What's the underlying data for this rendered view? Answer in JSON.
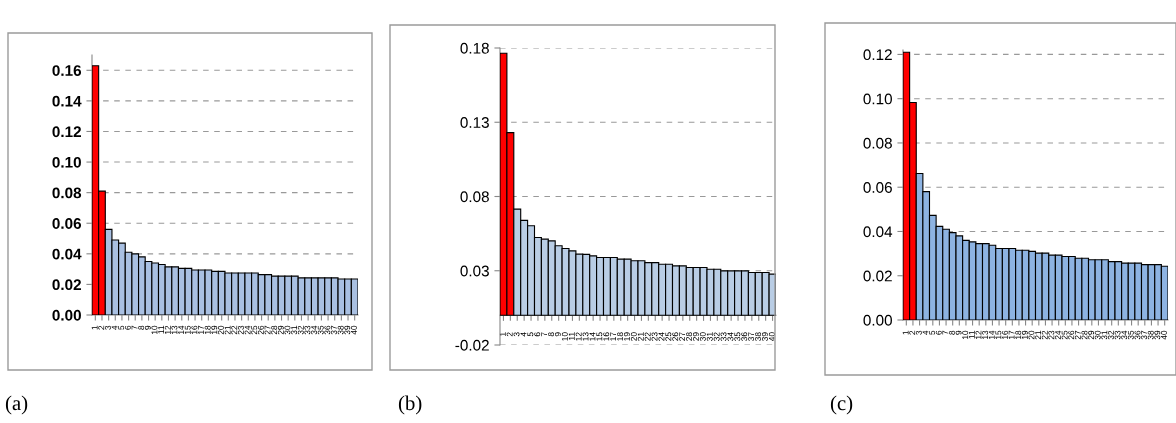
{
  "chart_data": [
    {
      "type": "bar",
      "categories": [
        "1",
        "2",
        "3",
        "4",
        "5",
        "6",
        "7",
        "8",
        "9",
        "10",
        "11",
        "12",
        "13",
        "14",
        "15",
        "16",
        "17",
        "18",
        "19",
        "20",
        "21",
        "22",
        "23",
        "24",
        "25",
        "26",
        "27",
        "28",
        "29",
        "30",
        "31",
        "32",
        "33",
        "34",
        "35",
        "36",
        "37",
        "38",
        "39",
        "40"
      ],
      "values": [
        0.163,
        0.081,
        0.056,
        0.049,
        0.047,
        0.041,
        0.04,
        0.038,
        0.035,
        0.034,
        0.033,
        0.0315,
        0.0315,
        0.0305,
        0.0305,
        0.0294,
        0.0294,
        0.0294,
        0.0285,
        0.0285,
        0.0275,
        0.0275,
        0.0275,
        0.0275,
        0.0275,
        0.0264,
        0.0264,
        0.0254,
        0.0254,
        0.0254,
        0.0254,
        0.0243,
        0.0243,
        0.0243,
        0.0243,
        0.0243,
        0.0243,
        0.0235,
        0.0235,
        0.0235
      ],
      "colors": [
        "#ff0000",
        "#ff0000",
        "#a9c0e2",
        "#a9c0e2",
        "#a9c0e2",
        "#a9c0e2",
        "#a9c0e2",
        "#a9c0e2",
        "#a9c0e2",
        "#a9c0e2",
        "#a9c0e2",
        "#a9c0e2",
        "#a9c0e2",
        "#a9c0e2",
        "#a9c0e2",
        "#a9c0e2",
        "#a9c0e2",
        "#a9c0e2",
        "#a9c0e2",
        "#a9c0e2",
        "#a9c0e2",
        "#a9c0e2",
        "#a9c0e2",
        "#a9c0e2",
        "#a9c0e2",
        "#a9c0e2",
        "#a9c0e2",
        "#a9c0e2",
        "#a9c0e2",
        "#a9c0e2",
        "#a9c0e2",
        "#a9c0e2",
        "#a9c0e2",
        "#a9c0e2",
        "#a9c0e2",
        "#a9c0e2",
        "#a9c0e2",
        "#a9c0e2",
        "#a9c0e2",
        "#a9c0e2"
      ],
      "ylim": [
        0,
        0.17
      ],
      "yticks": [
        {
          "value": 0,
          "label": "0.00"
        },
        {
          "value": 0.02,
          "label": "0.02"
        },
        {
          "value": 0.04,
          "label": "0.04"
        },
        {
          "value": 0.06,
          "label": "0.06"
        },
        {
          "value": 0.08,
          "label": "0.08"
        },
        {
          "value": 0.1,
          "label": "0.10"
        },
        {
          "value": 0.12,
          "label": "0.12"
        },
        {
          "value": 0.14,
          "label": "0.14"
        },
        {
          "value": 0.16,
          "label": "0.16"
        }
      ],
      "grid": "y",
      "annotations": [
        "(a)"
      ]
    },
    {
      "type": "bar",
      "categories": [
        "1",
        "2",
        "3",
        "4",
        "5",
        "6",
        "7",
        "8",
        "9",
        "10",
        "11",
        "12",
        "13",
        "14",
        "15",
        "16",
        "17",
        "18",
        "19",
        "20",
        "21",
        "22",
        "23",
        "24",
        "25",
        "26",
        "27",
        "28",
        "29",
        "30",
        "31",
        "32",
        "33",
        "34",
        "35",
        "36",
        "37",
        "38",
        "39",
        "40"
      ],
      "values": [
        0.1765,
        0.123,
        0.0715,
        0.0639,
        0.0603,
        0.0524,
        0.0513,
        0.0501,
        0.0468,
        0.045,
        0.0434,
        0.0412,
        0.041,
        0.04,
        0.0389,
        0.0389,
        0.0389,
        0.0378,
        0.0378,
        0.0367,
        0.0367,
        0.0355,
        0.0355,
        0.0344,
        0.0344,
        0.0333,
        0.0333,
        0.0322,
        0.0322,
        0.0322,
        0.031,
        0.031,
        0.0299,
        0.0299,
        0.0299,
        0.0299,
        0.0288,
        0.0288,
        0.0288,
        0.0277
      ],
      "colors": [
        "#ff0000",
        "#ff0000",
        "#b9cde5",
        "#b9cde5",
        "#b9cde5",
        "#b9cde5",
        "#b9cde5",
        "#b9cde5",
        "#b9cde5",
        "#b9cde5",
        "#b9cde5",
        "#b9cde5",
        "#b9cde5",
        "#b9cde5",
        "#b9cde5",
        "#b9cde5",
        "#b9cde5",
        "#b9cde5",
        "#b9cde5",
        "#b9cde5",
        "#b9cde5",
        "#b9cde5",
        "#b9cde5",
        "#b9cde5",
        "#b9cde5",
        "#b9cde5",
        "#b9cde5",
        "#b9cde5",
        "#b9cde5",
        "#b9cde5",
        "#b9cde5",
        "#b9cde5",
        "#b9cde5",
        "#b9cde5",
        "#b9cde5",
        "#b9cde5",
        "#b9cde5",
        "#b9cde5",
        "#b9cde5",
        "#b9cde5"
      ],
      "ylim": [
        -0.02,
        0.18
      ],
      "yticks": [
        -0.02,
        0.03,
        0.08,
        0.13,
        0.18
      ],
      "grid": "y",
      "annotations": [
        "(b)"
      ]
    },
    {
      "type": "bar",
      "categories": [
        "1",
        "2",
        "3",
        "4",
        "5",
        "6",
        "7",
        "8",
        "9",
        "10",
        "11",
        "12",
        "13",
        "14",
        "15",
        "16",
        "17",
        "18",
        "19",
        "20",
        "21",
        "22",
        "23",
        "24",
        "25",
        "26",
        "27",
        "28",
        "29",
        "30",
        "31",
        "32",
        "33",
        "34",
        "35",
        "36",
        "37",
        "38",
        "39",
        "40"
      ],
      "values": [
        0.121,
        0.0983,
        0.0662,
        0.058,
        0.0473,
        0.0423,
        0.041,
        0.0395,
        0.038,
        0.036,
        0.0353,
        0.0345,
        0.0345,
        0.0338,
        0.0323,
        0.0323,
        0.0323,
        0.0315,
        0.0315,
        0.031,
        0.0302,
        0.0302,
        0.0293,
        0.0293,
        0.0287,
        0.0287,
        0.0279,
        0.0279,
        0.0272,
        0.0272,
        0.0272,
        0.0264,
        0.0264,
        0.0257,
        0.0257,
        0.0257,
        0.025,
        0.025,
        0.025,
        0.0243
      ],
      "colors": [
        "#ff0000",
        "#ff0000",
        "#8db3e2",
        "#8db3e2",
        "#8db3e2",
        "#8db3e2",
        "#8db3e2",
        "#8db3e2",
        "#8db3e2",
        "#8db3e2",
        "#8db3e2",
        "#8db3e2",
        "#8db3e2",
        "#8db3e2",
        "#8db3e2",
        "#8db3e2",
        "#8db3e2",
        "#8db3e2",
        "#8db3e2",
        "#8db3e2",
        "#8db3e2",
        "#8db3e2",
        "#8db3e2",
        "#8db3e2",
        "#8db3e2",
        "#8db3e2",
        "#8db3e2",
        "#8db3e2",
        "#8db3e2",
        "#8db3e2",
        "#8db3e2",
        "#8db3e2",
        "#8db3e2",
        "#8db3e2",
        "#8db3e2",
        "#8db3e2",
        "#8db3e2",
        "#8db3e2",
        "#8db3e2",
        "#8db3e2"
      ],
      "ylim": [
        0,
        0.122
      ],
      "yticks": [
        {
          "value": 0,
          "label": "0.00"
        },
        {
          "value": 0.02,
          "label": "0.02"
        },
        {
          "value": 0.04,
          "label": "0.04"
        },
        {
          "value": 0.06,
          "label": "0.06"
        },
        {
          "value": 0.08,
          "label": "0.08"
        },
        {
          "value": 0.1,
          "label": "0.10"
        },
        {
          "value": 0.12,
          "label": "0.12"
        }
      ],
      "grid": "y",
      "annotations": [
        "(c)"
      ]
    }
  ]
}
